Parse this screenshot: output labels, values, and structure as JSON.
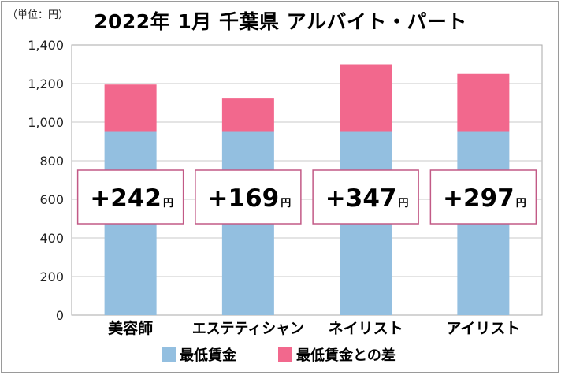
{
  "header": {
    "unit": "（単位：円）",
    "title": "2022年 1月  千葉県  アルバイト・パート"
  },
  "chart_data": {
    "type": "bar",
    "stacked": true,
    "title": "2022年 1月  千葉県  アルバイト・パート",
    "unit": "（単位：円）",
    "categories": [
      "美容師",
      "エステティシャン",
      "ネイリスト",
      "アイリスト"
    ],
    "series": [
      {
        "name": "最低賃金",
        "values": [
          953,
          953,
          953,
          953
        ],
        "color": "#93bfe0"
      },
      {
        "name": "最低賃金との差",
        "values": [
          242,
          169,
          347,
          297
        ],
        "color": "#f2688d"
      }
    ],
    "annotations": [
      "+242",
      "+169",
      "+347",
      "+297"
    ],
    "annotation_unit": "円",
    "yticks": [
      "0",
      "200",
      "400",
      "600",
      "800",
      "1,000",
      "1,200",
      "1,400"
    ],
    "ylim": [
      0,
      1400
    ],
    "grid": true,
    "legend": "bottom"
  }
}
